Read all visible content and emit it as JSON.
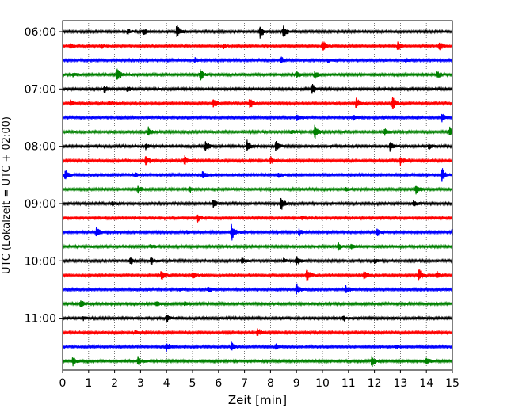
{
  "chart_data": {
    "type": "line",
    "xlabel": "Zeit  [min]",
    "ylabel": "UTC (Lokalzeit = UTC + 02:00)",
    "xlim": [
      0,
      15
    ],
    "x_ticks": [
      0,
      1,
      2,
      3,
      4,
      5,
      6,
      7,
      8,
      9,
      10,
      11,
      12,
      13,
      14,
      15
    ],
    "x_tick_labels": [
      "0",
      "1",
      "2",
      "3",
      "4",
      "5",
      "6",
      "7",
      "8",
      "9",
      "10",
      "11",
      "12",
      "13",
      "14",
      "15"
    ],
    "y_tick_labels": [
      "06:00",
      "07:00",
      "08:00",
      "09:00",
      "10:00",
      "11:00"
    ],
    "y_tick_rows": [
      0,
      4,
      8,
      12,
      16,
      20
    ],
    "grid": "vertical dotted",
    "colors": [
      "#000000",
      "#ff0000",
      "#0000ff",
      "#008000"
    ],
    "rows": [
      {
        "start": "06:00",
        "color": "#000000",
        "events": [
          [
            2.5,
            0.4
          ],
          [
            3.1,
            0.5
          ],
          [
            4.4,
            1.0
          ],
          [
            7.6,
            0.9
          ],
          [
            8.5,
            0.9
          ]
        ]
      },
      {
        "start": "06:15",
        "color": "#ff0000",
        "events": [
          [
            0.3,
            0.4
          ],
          [
            1.5,
            0.3
          ],
          [
            6.2,
            0.3
          ],
          [
            10.0,
            0.8
          ],
          [
            12.9,
            0.6
          ],
          [
            14.5,
            0.6
          ]
        ]
      },
      {
        "start": "06:30",
        "color": "#0000ff",
        "events": [
          [
            5.1,
            0.3
          ],
          [
            8.4,
            0.5
          ],
          [
            10.2,
            0.3
          ],
          [
            13.2,
            0.3
          ]
        ]
      },
      {
        "start": "06:45",
        "color": "#008000",
        "events": [
          [
            0.4,
            0.3
          ],
          [
            2.1,
            0.9
          ],
          [
            5.3,
            0.8
          ],
          [
            9.0,
            0.5
          ],
          [
            9.7,
            0.6
          ],
          [
            14.4,
            0.6
          ]
        ]
      },
      {
        "start": "07:00",
        "color": "#000000",
        "events": [
          [
            1.6,
            0.5
          ],
          [
            2.5,
            0.4
          ],
          [
            9.6,
            0.7
          ]
        ]
      },
      {
        "start": "07:15",
        "color": "#ff0000",
        "events": [
          [
            0.3,
            0.4
          ],
          [
            1.8,
            0.3
          ],
          [
            5.8,
            0.7
          ],
          [
            7.2,
            0.7
          ],
          [
            11.3,
            0.8
          ],
          [
            12.7,
            0.9
          ]
        ]
      },
      {
        "start": "07:30",
        "color": "#0000ff",
        "events": [
          [
            9.0,
            0.5
          ],
          [
            11.2,
            0.4
          ],
          [
            14.6,
            0.6
          ]
        ]
      },
      {
        "start": "07:45",
        "color": "#008000",
        "events": [
          [
            3.3,
            0.6
          ],
          [
            8.8,
            0.3
          ],
          [
            9.7,
            1.0
          ],
          [
            12.4,
            0.4
          ],
          [
            14.9,
            0.6
          ]
        ]
      },
      {
        "start": "08:00",
        "color": "#000000",
        "events": [
          [
            3.2,
            0.4
          ],
          [
            5.5,
            0.8
          ],
          [
            7.1,
            0.8
          ],
          [
            8.2,
            0.8
          ],
          [
            12.6,
            0.6
          ],
          [
            14.1,
            0.4
          ]
        ]
      },
      {
        "start": "08:15",
        "color": "#ff0000",
        "events": [
          [
            3.2,
            0.8
          ],
          [
            4.7,
            0.6
          ],
          [
            8.0,
            0.6
          ],
          [
            13.0,
            0.6
          ]
        ]
      },
      {
        "start": "08:30",
        "color": "#0000ff",
        "events": [
          [
            0.1,
            0.7
          ],
          [
            2.8,
            0.3
          ],
          [
            5.4,
            0.6
          ],
          [
            8.3,
            0.4
          ],
          [
            14.6,
            1.0
          ]
        ]
      },
      {
        "start": "08:45",
        "color": "#008000",
        "events": [
          [
            2.9,
            0.6
          ],
          [
            4.9,
            0.4
          ],
          [
            10.9,
            0.3
          ],
          [
            13.6,
            0.6
          ]
        ]
      },
      {
        "start": "09:00",
        "color": "#000000",
        "events": [
          [
            1.9,
            0.3
          ],
          [
            5.8,
            0.6
          ],
          [
            8.4,
            1.0
          ],
          [
            13.5,
            0.4
          ]
        ]
      },
      {
        "start": "09:15",
        "color": "#ff0000",
        "events": [
          [
            5.2,
            0.6
          ],
          [
            9.2,
            0.3
          ]
        ]
      },
      {
        "start": "09:30",
        "color": "#0000ff",
        "events": [
          [
            1.3,
            0.7
          ],
          [
            4.8,
            0.3
          ],
          [
            6.5,
            1.2
          ],
          [
            9.1,
            0.5
          ],
          [
            12.1,
            0.5
          ],
          [
            15.0,
            0.6
          ]
        ]
      },
      {
        "start": "09:45",
        "color": "#008000",
        "events": [
          [
            3.4,
            0.3
          ],
          [
            10.6,
            0.5
          ],
          [
            11.1,
            0.4
          ]
        ]
      },
      {
        "start": "10:00",
        "color": "#000000",
        "events": [
          [
            2.6,
            0.5
          ],
          [
            3.4,
            0.5
          ],
          [
            6.9,
            0.5
          ],
          [
            8.5,
            0.3
          ],
          [
            9.0,
            0.6
          ],
          [
            12.0,
            0.3
          ]
        ]
      },
      {
        "start": "10:15",
        "color": "#ff0000",
        "events": [
          [
            3.8,
            0.7
          ],
          [
            5.0,
            0.5
          ],
          [
            9.4,
            1.0
          ],
          [
            11.6,
            0.7
          ],
          [
            13.7,
            1.0
          ],
          [
            14.4,
            0.5
          ]
        ]
      },
      {
        "start": "10:30",
        "color": "#0000ff",
        "events": [
          [
            4.5,
            0.3
          ],
          [
            5.6,
            0.5
          ],
          [
            9.0,
            0.8
          ],
          [
            10.9,
            0.6
          ]
        ]
      },
      {
        "start": "10:45",
        "color": "#008000",
        "events": [
          [
            0.7,
            0.6
          ],
          [
            3.6,
            0.4
          ],
          [
            4.7,
            0.3
          ]
        ]
      },
      {
        "start": "11:00",
        "color": "#000000",
        "events": [
          [
            0.8,
            0.3
          ],
          [
            4.0,
            0.5
          ],
          [
            10.8,
            0.4
          ]
        ]
      },
      {
        "start": "11:15",
        "color": "#ff0000",
        "events": [
          [
            2.8,
            0.3
          ],
          [
            7.5,
            0.6
          ]
        ]
      },
      {
        "start": "11:30",
        "color": "#0000ff",
        "events": [
          [
            4.0,
            0.6
          ],
          [
            6.5,
            0.6
          ],
          [
            8.2,
            0.4
          ],
          [
            12.8,
            0.3
          ]
        ]
      },
      {
        "start": "11:45",
        "color": "#008000",
        "events": [
          [
            0.4,
            0.6
          ],
          [
            2.9,
            0.6
          ],
          [
            11.9,
            0.8
          ],
          [
            14.0,
            0.6
          ]
        ]
      }
    ]
  }
}
